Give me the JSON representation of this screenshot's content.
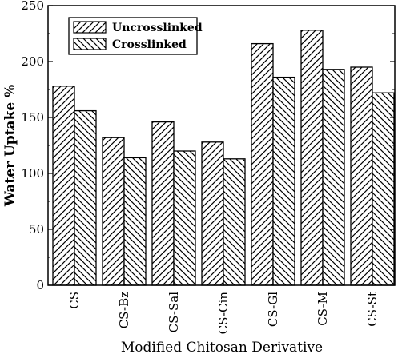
{
  "chart_data": {
    "type": "bar",
    "title": "",
    "xlabel": "Modified Chitosan Derivative",
    "ylabel": "Water Uptake %",
    "categories": [
      "CS",
      "CS-Bz",
      "CS-Sal",
      "CS-Cin",
      "CS-Gl",
      "CS-M",
      "CS-St"
    ],
    "series": [
      {
        "name": "Uncrosslinked",
        "values": [
          178,
          132,
          146,
          128,
          216,
          228,
          195
        ],
        "pattern": "forward-hatch"
      },
      {
        "name": "Crosslinked",
        "values": [
          156,
          114,
          120,
          113,
          186,
          193,
          172
        ],
        "pattern": "back-hatch"
      }
    ],
    "ylim": [
      0,
      250
    ],
    "yticks": [
      0,
      50,
      100,
      150,
      200,
      250
    ],
    "grid": false,
    "legend": "top-left"
  }
}
